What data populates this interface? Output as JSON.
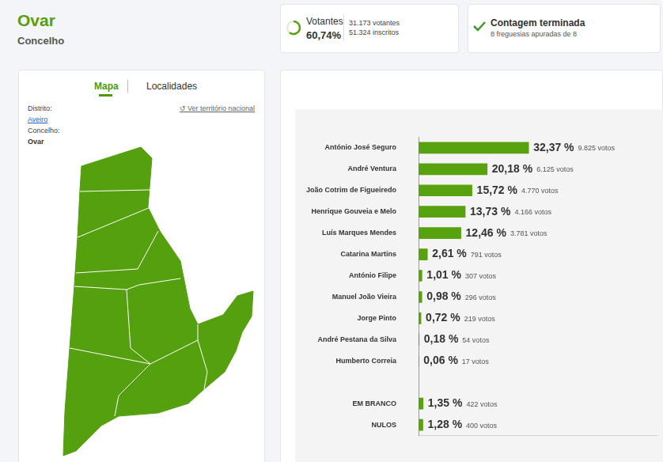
{
  "header": {
    "title": "Ovar",
    "subtitle": "Concelho"
  },
  "turnout": {
    "label": "Votantes",
    "value": 60.74,
    "value_label": "60,74%",
    "voters": "31.173 votantes",
    "registered": "51.324 inscritos"
  },
  "count": {
    "title": "Contagem terminada",
    "detail": "8 freguesias apuradas de 8"
  },
  "sidebar": {
    "tabs": [
      "Mapa",
      "Localidades"
    ],
    "district_label": "Distrito:",
    "district": "Aveiro",
    "municipality_label": "Concelho:",
    "municipality": "Ovar",
    "national_link": "↺ Ver território nacional"
  },
  "chart_data": {
    "type": "bar",
    "orientation": "horizontal",
    "color": "#58a10f",
    "categories": [
      "António José Seguro",
      "André Ventura",
      "João Cotrim de Figueiredo",
      "Henrique Gouveia e Melo",
      "Luís Marques Mendes",
      "Catarina Martins",
      "António Filipe",
      "Manuel João Vieira",
      "Jorge Pinto",
      "André Pestana da Silva",
      "Humberto Correia",
      null,
      "EM BRANCO",
      "NULOS"
    ],
    "values": [
      32.37,
      20.18,
      15.72,
      13.73,
      12.46,
      2.61,
      1.01,
      0.98,
      0.72,
      0.18,
      0.06,
      null,
      1.35,
      1.28
    ],
    "value_labels": [
      "32,37 %",
      "20,18 %",
      "15,72 %",
      "13,73 %",
      "12,46 %",
      "2,61 %",
      "1,01 %",
      "0,98 %",
      "0,72 %",
      "0,18 %",
      "0,06 %",
      null,
      "1,35 %",
      "1,28 %"
    ],
    "vote_labels": [
      "9.825 votos",
      "6.125 votos",
      "4.770 votos",
      "4.166 votos",
      "3.781 votos",
      "791 votos",
      "307 votos",
      "296 votos",
      "219 votos",
      "54 votos",
      "17 votos",
      null,
      "422 votos",
      "400 votos"
    ],
    "data_labels": true,
    "xlim": [
      0,
      70
    ],
    "grid": false,
    "tick_labels": "y"
  }
}
